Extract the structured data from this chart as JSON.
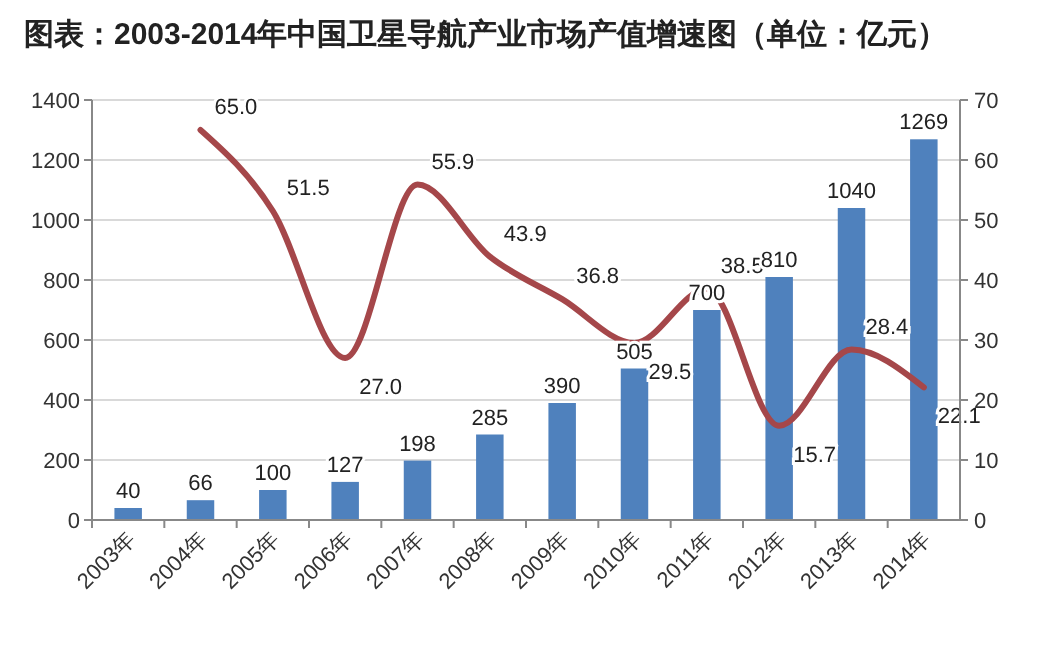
{
  "chart_data": {
    "type": "bar",
    "title": "图表：2003-2014年中国卫星导航产业市场产值增速图（单位：亿元）",
    "categories": [
      "2003年",
      "2004年",
      "2005年",
      "2006年",
      "2007年",
      "2008年",
      "2009年",
      "2010年",
      "2011年",
      "2012年",
      "2013年",
      "2014年"
    ],
    "series": [
      {
        "color": "#4f81bd",
        "values": [
          40,
          66,
          100,
          127,
          198,
          285,
          390,
          505,
          700,
          810,
          1040,
          1269
        ]
      },
      {
        "type": "line",
        "axis": "y2",
        "color": "#a5474a",
        "values": [
          null,
          65.0,
          51.5,
          27.0,
          55.9,
          43.9,
          36.8,
          29.5,
          38.5,
          15.7,
          28.4,
          22.1
        ],
        "value_labels": [
          null,
          "65.0",
          "51.5",
          "27.0",
          "55.9",
          "43.9",
          "36.8",
          "29.5",
          "38.5",
          "15.7",
          "28.4",
          "22.1"
        ]
      }
    ],
    "ylim": [
      0,
      1400
    ],
    "yticks": [
      0,
      200,
      400,
      600,
      800,
      1000,
      1200,
      1400
    ],
    "y2lim": [
      0,
      70
    ],
    "y2ticks": [
      0,
      10,
      20,
      30,
      40,
      50,
      60,
      70
    ],
    "grid": "y",
    "data_labels": true,
    "marker": "none"
  }
}
